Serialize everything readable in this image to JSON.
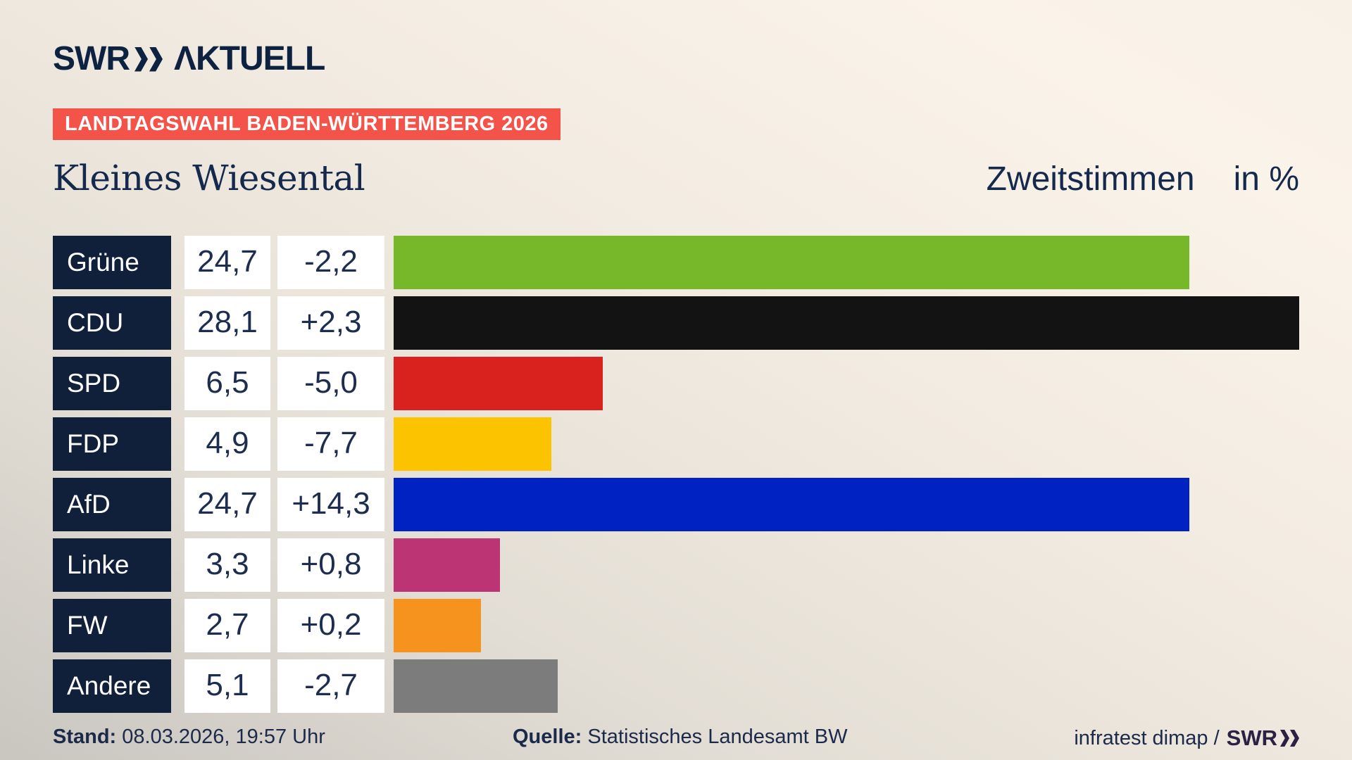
{
  "header": {
    "brand": "SWR",
    "brand_suffix": "ΛKTUELL",
    "banner": "LANDTAGSWAHL BADEN-WÜRTTEMBERG 2026",
    "location": "Kleines Wiesental",
    "vote_type": "Zweitstimmen",
    "unit": "in %"
  },
  "chart_data": {
    "type": "bar",
    "orientation": "horizontal",
    "title": "Kleines Wiesental",
    "subtitle": "Zweitstimmen in %",
    "axis_max": 28.1,
    "grid": false,
    "categories": [
      "Grüne",
      "CDU",
      "SPD",
      "FDP",
      "AfD",
      "Linke",
      "FW",
      "Andere"
    ],
    "values": [
      24.7,
      28.1,
      6.5,
      4.9,
      24.7,
      3.3,
      2.7,
      5.1
    ],
    "changes": [
      -2.2,
      2.3,
      -5.0,
      -7.7,
      14.3,
      0.8,
      0.2,
      -2.7
    ],
    "rows": [
      {
        "party": "Grüne",
        "value": 24.7,
        "value_label": "24,7",
        "change_label": "-2,2",
        "color": "#77b82a"
      },
      {
        "party": "CDU",
        "value": 28.1,
        "value_label": "28,1",
        "change_label": "+2,3",
        "color": "#131313"
      },
      {
        "party": "SPD",
        "value": 6.5,
        "value_label": "6,5",
        "change_label": "-5,0",
        "color": "#d9221e"
      },
      {
        "party": "FDP",
        "value": 4.9,
        "value_label": "4,9",
        "change_label": "-7,7",
        "color": "#fcc400"
      },
      {
        "party": "AfD",
        "value": 24.7,
        "value_label": "24,7",
        "change_label": "+14,3",
        "color": "#0122c3"
      },
      {
        "party": "Linke",
        "value": 3.3,
        "value_label": "3,3",
        "change_label": "+0,8",
        "color": "#bd3475"
      },
      {
        "party": "FW",
        "value": 2.7,
        "value_label": "2,7",
        "change_label": "+0,2",
        "color": "#f6921e"
      },
      {
        "party": "Andere",
        "value": 5.1,
        "value_label": "5,1",
        "change_label": "-2,7",
        "color": "#7c7c7c"
      }
    ]
  },
  "footer": {
    "stand_label": "Stand:",
    "stand_value": "08.03.2026, 19:57 Uhr",
    "quelle_label": "Quelle:",
    "quelle_value": "Statistisches Landesamt BW",
    "credit": "infratest dimap /",
    "credit_brand": "SWR"
  }
}
